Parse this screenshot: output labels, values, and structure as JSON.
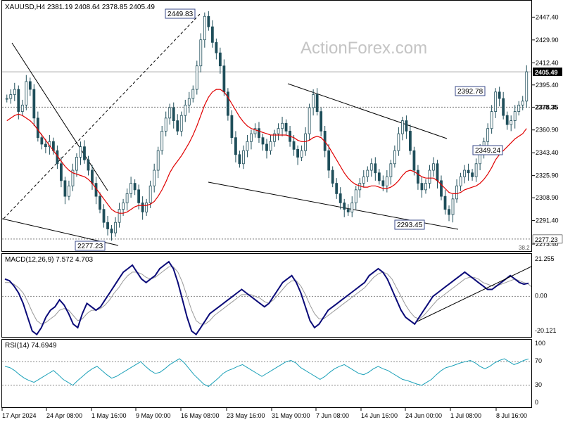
{
  "main_header": "XAUUSD,H4  2381.19 2408.64 2378.85 2405.49",
  "watermark": "ActionForex.com",
  "macd_header": "MACD(12,26,9) 7.572 4.703",
  "rsi_header": "RSI(14) 74.6949",
  "colors": {
    "candle": "#1f4e5a",
    "ma": "#e00000",
    "macd": "#0a0a78",
    "signal": "#9a9a9a",
    "rsi": "#1aa0b8",
    "watermark": "#bdbdbd",
    "current_price_bg": "#000000"
  },
  "price_axis": {
    "ticks": [
      "2447.40",
      "2429.90",
      "2412.40",
      "2395.40",
      "2378.35",
      "2360.90",
      "2343.40",
      "2325.90",
      "2308.90",
      "2291.40",
      "2273.40"
    ],
    "current": "2405.49",
    "support": "2277.23"
  },
  "macd_axis": [
    "21.255",
    "0.00",
    "-20.121"
  ],
  "rsi_axis": [
    "100",
    "70",
    "30",
    "0"
  ],
  "fib_label": "38.2",
  "time_axis": [
    "17 Apr 2024",
    "24 Apr 08:00",
    "1 May 16:00",
    "9 May 00:00",
    "16 May 08:00",
    "23 May 16:00",
    "31 May 00:00",
    "7 Jun 08:00",
    "14 Jun 16:00",
    "24 Jun 00:00",
    "1 Jul 08:00",
    "8 Jul 16:00"
  ],
  "annotations": [
    "2449.83",
    "2392.78",
    "2349.24",
    "2293.45",
    "2277.23"
  ],
  "chart_data": {
    "type": "candlestick",
    "title": "XAUUSD,H4",
    "ohlc_last": {
      "open": 2381.19,
      "high": 2408.64,
      "low": 2378.85,
      "close": 2405.49
    },
    "ylim": [
      2268,
      2460
    ],
    "close_series": [
      2385,
      2388,
      2392,
      2375,
      2380,
      2398,
      2392,
      2370,
      2355,
      2350,
      2348,
      2352,
      2345,
      2335,
      2322,
      2310,
      2318,
      2330,
      2340,
      2348,
      2338,
      2330,
      2320,
      2310,
      2300,
      2290,
      2285,
      2282,
      2290,
      2300,
      2305,
      2312,
      2320,
      2315,
      2305,
      2298,
      2305,
      2318,
      2330,
      2345,
      2360,
      2370,
      2378,
      2368,
      2360,
      2372,
      2380,
      2385,
      2392,
      2410,
      2430,
      2448,
      2440,
      2428,
      2420,
      2410,
      2390,
      2372,
      2355,
      2342,
      2335,
      2345,
      2352,
      2358,
      2362,
      2355,
      2350,
      2345,
      2352,
      2358,
      2362,
      2366,
      2360,
      2352,
      2346,
      2340,
      2345,
      2358,
      2378,
      2388,
      2375,
      2360,
      2345,
      2330,
      2320,
      2312,
      2305,
      2300,
      2298,
      2305,
      2315,
      2320,
      2325,
      2330,
      2335,
      2328,
      2322,
      2318,
      2325,
      2335,
      2345,
      2358,
      2368,
      2360,
      2345,
      2330,
      2320,
      2315,
      2320,
      2330,
      2335,
      2322,
      2310,
      2300,
      2296,
      2308,
      2318,
      2325,
      2330,
      2328,
      2325,
      2335,
      2345,
      2352,
      2362,
      2375,
      2390,
      2385,
      2372,
      2365,
      2368,
      2375,
      2380,
      2383,
      2405.49
    ],
    "ma_series": [
      2368,
      2370,
      2372,
      2373,
      2372,
      2370,
      2368,
      2365,
      2361,
      2357,
      2353,
      2349,
      2345,
      2341,
      2337,
      2333,
      2330,
      2328,
      2327,
      2326,
      2325,
      2323,
      2320,
      2316,
      2312,
      2308,
      2304,
      2300,
      2298,
      2297,
      2297,
      2298,
      2300,
      2302,
      2303,
      2303,
      2303,
      2304,
      2306,
      2310,
      2315,
      2321,
      2328,
      2333,
      2337,
      2341,
      2346,
      2351,
      2357,
      2364,
      2372,
      2380,
      2386,
      2390,
      2392,
      2392,
      2390,
      2386,
      2381,
      2376,
      2371,
      2367,
      2364,
      2362,
      2361,
      2360,
      2359,
      2358,
      2357,
      2357,
      2357,
      2357,
      2357,
      2356,
      2355,
      2353,
      2352,
      2352,
      2353,
      2355,
      2356,
      2355,
      2352,
      2348,
      2343,
      2338,
      2333,
      2328,
      2324,
      2321,
      2319,
      2318,
      2317,
      2317,
      2318,
      2318,
      2317,
      2316,
      2316,
      2317,
      2319,
      2322,
      2326,
      2329,
      2330,
      2329,
      2327,
      2325,
      2324,
      2324,
      2324,
      2322,
      2319,
      2316,
      2313,
      2312,
      2312,
      2313,
      2315,
      2316,
      2317,
      2318,
      2320,
      2323,
      2327,
      2332,
      2338,
      2342,
      2345,
      2348,
      2351,
      2354,
      2356,
      2358,
      2362
    ],
    "macd_series": [
      10,
      9,
      6,
      2,
      -4,
      -12,
      -20,
      -22,
      -18,
      -12,
      -8,
      -6,
      -2,
      -5,
      -10,
      -16,
      -18,
      -10,
      -4,
      -6,
      -8,
      -6,
      -2,
      2,
      6,
      10,
      14,
      16,
      18,
      14,
      10,
      8,
      10,
      12,
      16,
      18,
      20,
      16,
      8,
      -2,
      -12,
      -20,
      -22,
      -18,
      -14,
      -10,
      -8,
      -6,
      -4,
      -2,
      0,
      2,
      4,
      2,
      0,
      -2,
      -4,
      -6,
      -4,
      0,
      4,
      8,
      10,
      12,
      8,
      2,
      -6,
      -14,
      -18,
      -16,
      -12,
      -8,
      -6,
      -4,
      -2,
      0,
      2,
      4,
      6,
      8,
      12,
      14,
      16,
      14,
      10,
      4,
      -2,
      -8,
      -12,
      -14,
      -16,
      -12,
      -8,
      -4,
      0,
      2,
      4,
      6,
      8,
      10,
      12,
      14,
      12,
      10,
      8,
      6,
      4,
      4,
      6,
      8,
      10,
      12,
      10,
      8,
      7,
      7.572
    ],
    "signal_series": [
      8,
      8,
      7,
      5,
      2,
      -3,
      -9,
      -14,
      -16,
      -15,
      -13,
      -11,
      -8,
      -7,
      -8,
      -11,
      -14,
      -13,
      -10,
      -8,
      -8,
      -7,
      -5,
      -2,
      2,
      5,
      9,
      12,
      14,
      14,
      13,
      11,
      10,
      11,
      13,
      15,
      17,
      17,
      14,
      8,
      0,
      -8,
      -14,
      -16,
      -16,
      -14,
      -11,
      -9,
      -7,
      -5,
      -3,
      -1,
      1,
      1,
      1,
      0,
      -1,
      -3,
      -4,
      -2,
      1,
      4,
      7,
      9,
      9,
      6,
      1,
      -5,
      -10,
      -13,
      -13,
      -11,
      -9,
      -7,
      -5,
      -3,
      -1,
      1,
      3,
      5,
      8,
      11,
      13,
      14,
      13,
      10,
      5,
      0,
      -5,
      -9,
      -12,
      -13,
      -11,
      -8,
      -5,
      -2,
      0,
      2,
      4,
      6,
      8,
      10,
      11,
      11,
      10,
      8,
      7,
      6,
      6,
      7,
      8,
      9,
      10,
      9,
      8,
      7,
      4.703
    ],
    "rsi_series": [
      62,
      60,
      55,
      48,
      42,
      38,
      35,
      40,
      45,
      50,
      55,
      48,
      40,
      35,
      30,
      38,
      45,
      52,
      58,
      62,
      55,
      48,
      42,
      45,
      50,
      55,
      60,
      65,
      70,
      62,
      55,
      50,
      52,
      58,
      65,
      70,
      75,
      68,
      58,
      48,
      40,
      32,
      28,
      35,
      42,
      50,
      55,
      58,
      62,
      65,
      60,
      55,
      50,
      45,
      50,
      55,
      60,
      65,
      70,
      72,
      68,
      60,
      55,
      50,
      45,
      40,
      45,
      52,
      58,
      62,
      65,
      60,
      55,
      50,
      48,
      52,
      58,
      62,
      58,
      55,
      50,
      45,
      40,
      38,
      35,
      32,
      30,
      35,
      40,
      48,
      55,
      60,
      62,
      65,
      68,
      70,
      72,
      68,
      62,
      58,
      62,
      68,
      72,
      75,
      70,
      65,
      68,
      72,
      74.6949
    ],
    "support_level": 2277.23,
    "resistance_level": 2378.35
  }
}
